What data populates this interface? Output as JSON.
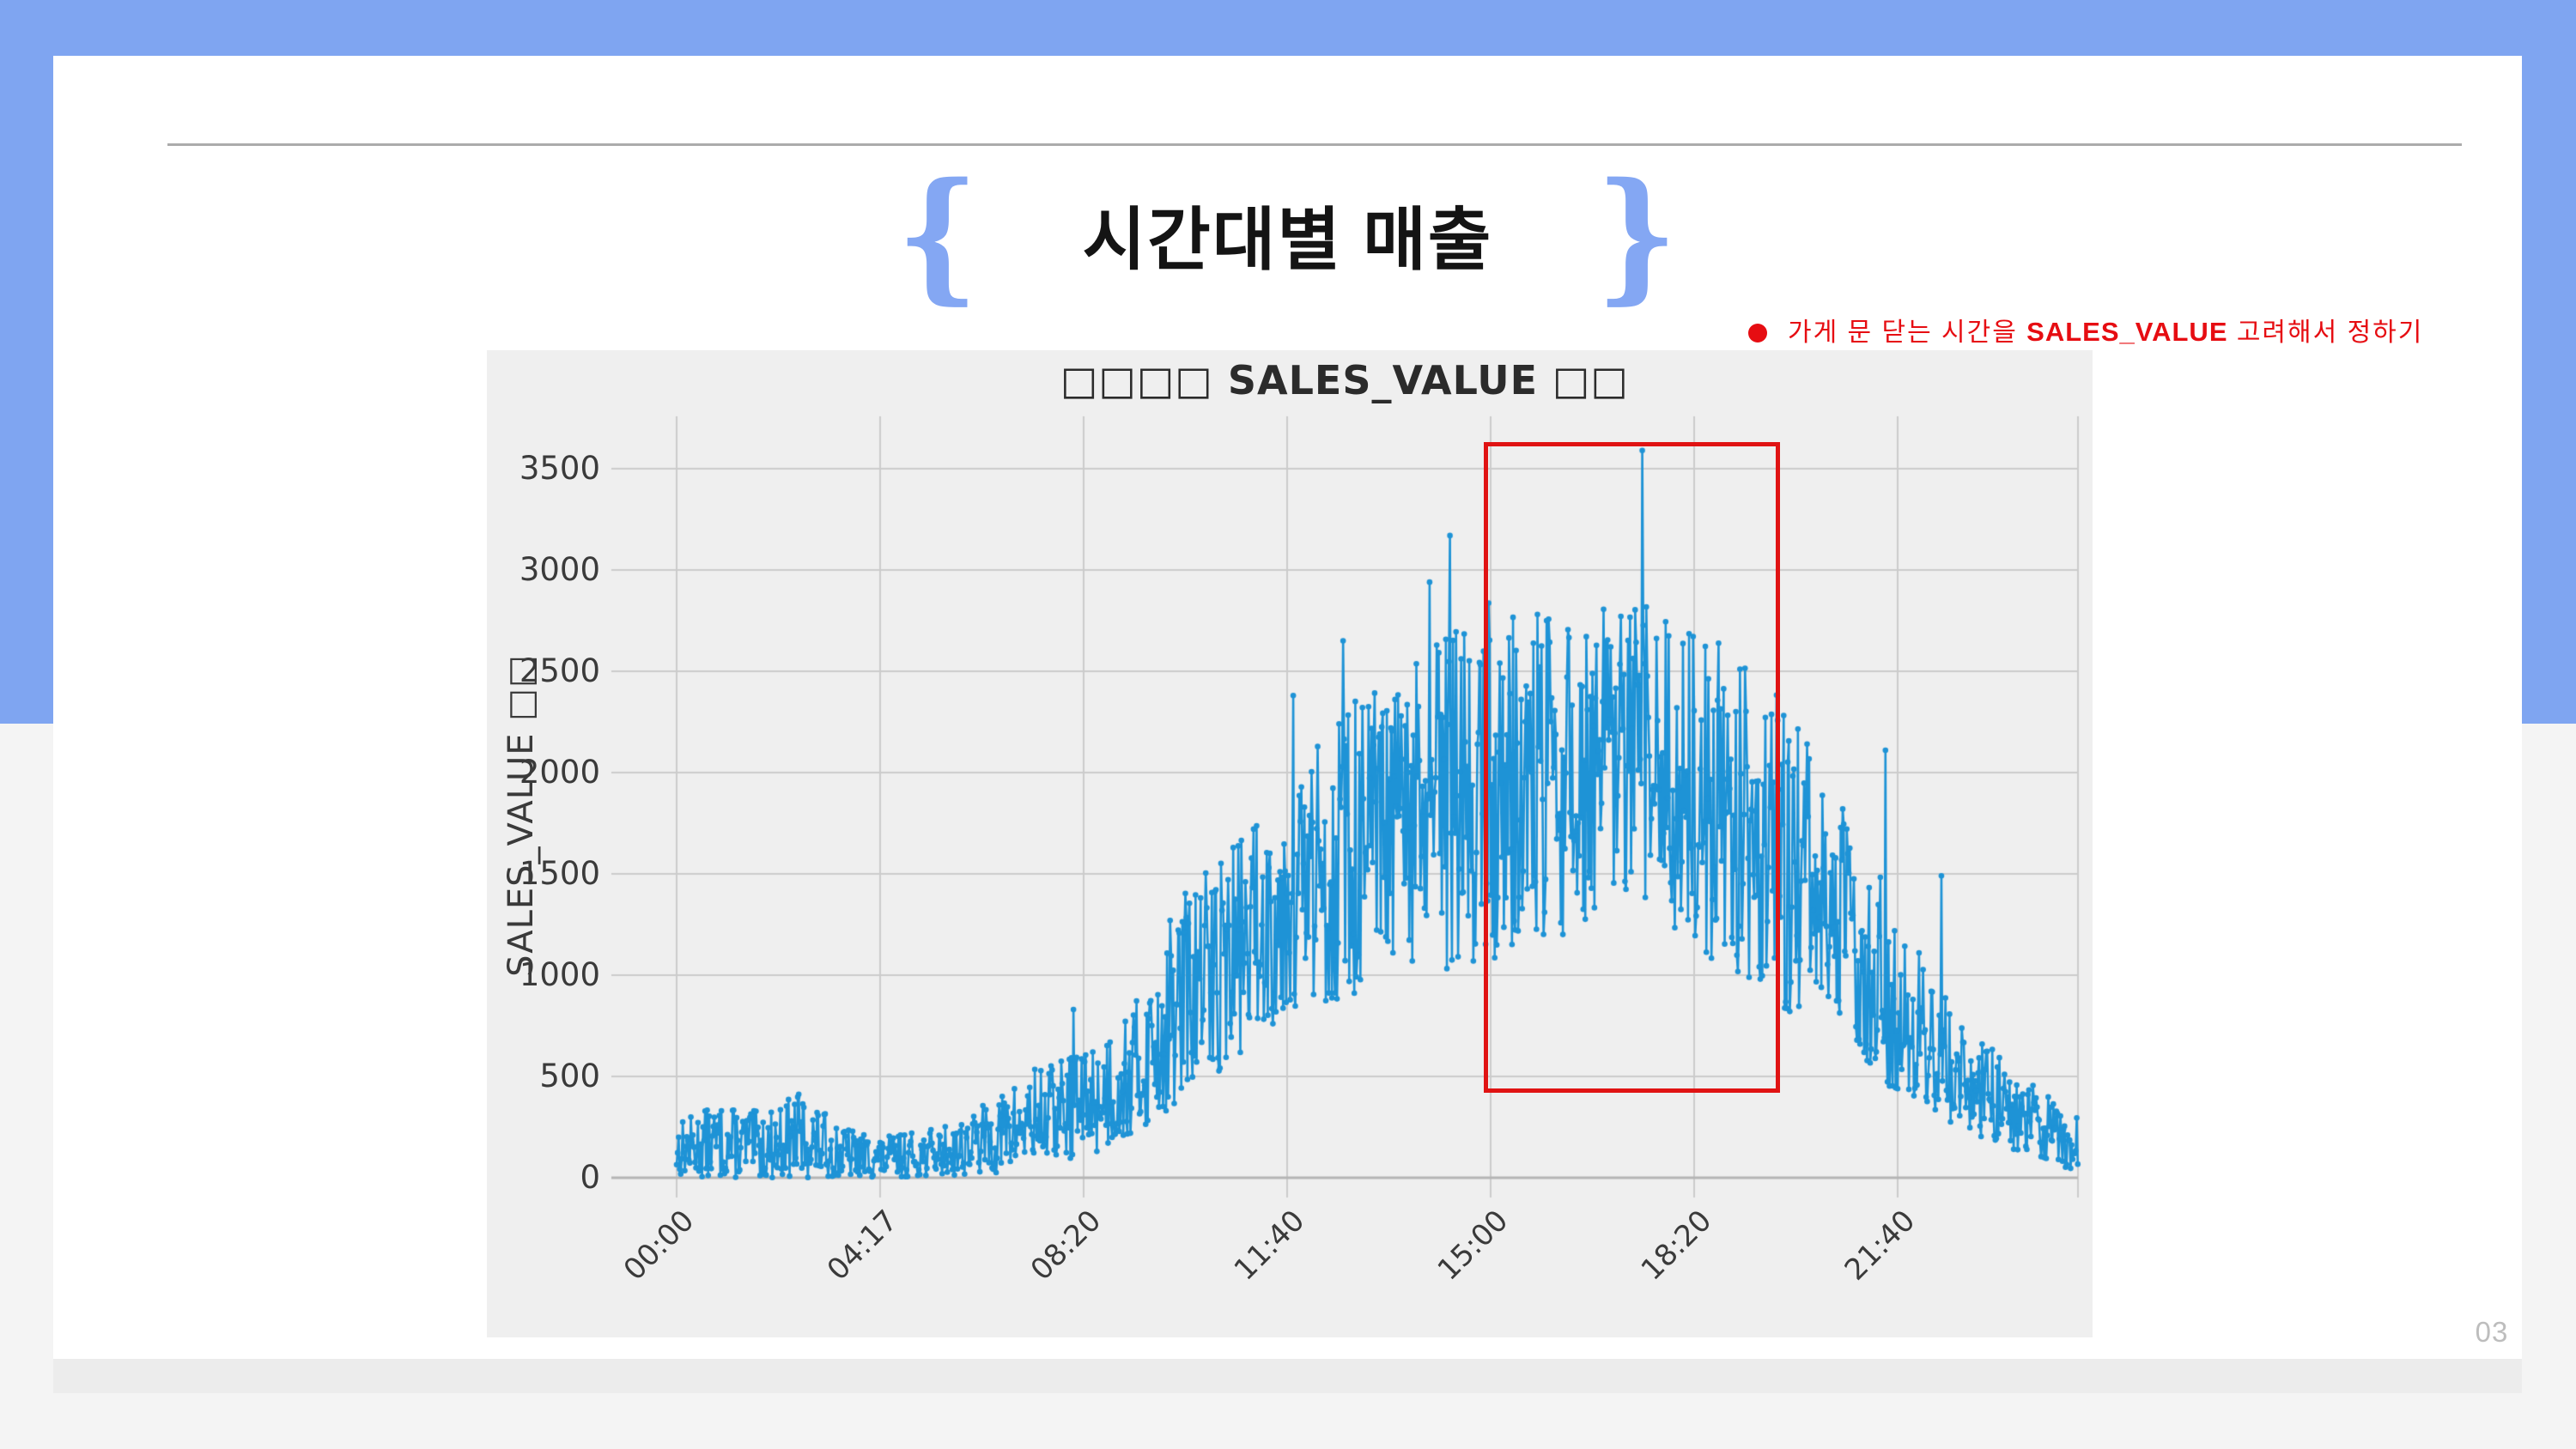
{
  "slide": {
    "title": "시간대별 매출",
    "brace_left": "{",
    "brace_right": "}",
    "page_number": "03",
    "annotation": {
      "bullet": "●",
      "prefix": "가게 문 닫는 시간을 ",
      "highlight": "SALES_VALUE",
      "suffix": " 고려해서 정하기",
      "color": "#e60d12"
    },
    "colors": {
      "top_band": "#7fa5f1",
      "card": "#ffffff",
      "page_background": "#f4f4f4",
      "next_slide_strip": "#ececec",
      "divider": "#ababab",
      "brace": "#84a7f3"
    }
  },
  "chart_data": {
    "type": "line",
    "title": "□□□□ SALES_VALUE □□",
    "title_note": "Korean characters of the chart title render as missing-glyph boxes in the original",
    "xlabel": "",
    "ylabel": "SALES_VALUE □□",
    "series_name": "SALES_VALUE",
    "x_tick_labels": [
      "00:00",
      "04:17",
      "08:20",
      "11:40",
      "15:00",
      "18:20",
      "21:40"
    ],
    "x_tick_indices": [
      0,
      200,
      400,
      600,
      800,
      1000,
      1200
    ],
    "n_points": 1378,
    "y_ticks": [
      0,
      500,
      1000,
      1500,
      2000,
      2500,
      3000,
      3500
    ],
    "ylim": [
      0,
      3700
    ],
    "grid": true,
    "legend": "none",
    "line_color": "#1e93d6",
    "marker": "circle",
    "figure_background": "#efefef",
    "grid_color": "#cbcbcb",
    "zero_line_color": "#b5b5b5",
    "noise_seed": 13,
    "envelope_points": [
      [
        0,
        10,
        280
      ],
      [
        40,
        0,
        360
      ],
      [
        90,
        0,
        320
      ],
      [
        120,
        0,
        430
      ],
      [
        160,
        0,
        260
      ],
      [
        200,
        0,
        200
      ],
      [
        260,
        10,
        250
      ],
      [
        310,
        20,
        380
      ],
      [
        350,
        60,
        540
      ],
      [
        400,
        100,
        640
      ],
      [
        450,
        200,
        850
      ],
      [
        500,
        380,
        1450
      ],
      [
        550,
        600,
        1700
      ],
      [
        600,
        820,
        1960
      ],
      [
        650,
        860,
        2300
      ],
      [
        700,
        950,
        2480
      ],
      [
        740,
        1050,
        2600
      ],
      [
        780,
        1000,
        2880
      ],
      [
        820,
        1100,
        2800
      ],
      [
        860,
        1150,
        2780
      ],
      [
        900,
        1250,
        2800
      ],
      [
        950,
        1350,
        2840
      ],
      [
        1000,
        1150,
        2700
      ],
      [
        1050,
        950,
        2600
      ],
      [
        1100,
        800,
        2280
      ],
      [
        1150,
        620,
        1850
      ],
      [
        1200,
        420,
        1300
      ],
      [
        1250,
        260,
        900
      ],
      [
        1300,
        160,
        600
      ],
      [
        1340,
        90,
        450
      ],
      [
        1377,
        30,
        300
      ]
    ],
    "notable_spikes": [
      [
        390,
        830
      ],
      [
        606,
        2380
      ],
      [
        655,
        2650
      ],
      [
        740,
        2940
      ],
      [
        760,
        3170
      ],
      [
        949,
        3590
      ],
      [
        1188,
        2110
      ],
      [
        1243,
        1490
      ]
    ],
    "highlight_box": {
      "x0_index": 793,
      "x1_index": 1084,
      "y0_value": 420,
      "y1_value": 3630,
      "color": "#e01313"
    }
  }
}
